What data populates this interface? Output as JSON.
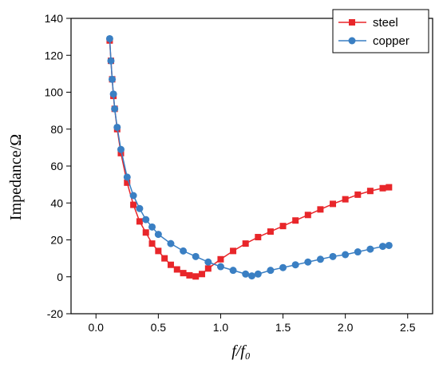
{
  "chart_data": {
    "type": "scatter",
    "xlabel": "f/f₀",
    "ylabel": "Impedance/Ω",
    "xlim": [
      -0.2,
      2.7
    ],
    "ylim": [
      -20,
      140
    ],
    "xticks": [
      0.0,
      0.5,
      1.0,
      1.5,
      2.0,
      2.5
    ],
    "yticks": [
      -20,
      0,
      20,
      40,
      60,
      80,
      100,
      120,
      140
    ],
    "xtick_labels": [
      "0.0",
      "0.5",
      "1.0",
      "1.5",
      "2.0",
      "2.5"
    ],
    "ytick_labels": [
      "-20",
      "0",
      "20",
      "40",
      "60",
      "80",
      "100",
      "120",
      "140"
    ],
    "grid": false,
    "legend_position": "top-right",
    "series": [
      {
        "name": "steel",
        "color": "#e8262a",
        "marker": "square",
        "x": [
          0.11,
          0.12,
          0.13,
          0.14,
          0.15,
          0.17,
          0.2,
          0.25,
          0.3,
          0.35,
          0.4,
          0.45,
          0.5,
          0.55,
          0.6,
          0.65,
          0.7,
          0.75,
          0.8,
          0.85,
          0.9,
          1.0,
          1.1,
          1.2,
          1.3,
          1.4,
          1.5,
          1.6,
          1.7,
          1.8,
          1.9,
          2.0,
          2.1,
          2.2,
          2.3,
          2.35
        ],
        "y": [
          128,
          117,
          107,
          98,
          91,
          80,
          67,
          51,
          39,
          30,
          24,
          18,
          14,
          10,
          6.5,
          4,
          2,
          0.8,
          0.2,
          1.5,
          4.5,
          9.5,
          14,
          18,
          21.5,
          24.5,
          27.5,
          30.5,
          33.5,
          36.5,
          39.5,
          42,
          44.5,
          46.5,
          48,
          48.5
        ]
      },
      {
        "name": "copper",
        "color": "#3a7fc3",
        "marker": "circle",
        "x": [
          0.11,
          0.12,
          0.13,
          0.14,
          0.15,
          0.17,
          0.2,
          0.25,
          0.3,
          0.35,
          0.4,
          0.45,
          0.5,
          0.6,
          0.7,
          0.8,
          0.9,
          1.0,
          1.1,
          1.2,
          1.25,
          1.3,
          1.4,
          1.5,
          1.6,
          1.7,
          1.8,
          1.9,
          2.0,
          2.1,
          2.2,
          2.3,
          2.35
        ],
        "y": [
          129,
          117,
          107,
          99,
          91,
          81,
          69,
          54,
          44,
          37,
          31,
          27,
          23,
          18,
          14,
          11,
          8,
          5.5,
          3.5,
          1.5,
          0.5,
          1.5,
          3.5,
          5,
          6.5,
          8,
          9.5,
          11,
          12,
          13.5,
          15,
          16.5,
          17
        ]
      }
    ]
  }
}
